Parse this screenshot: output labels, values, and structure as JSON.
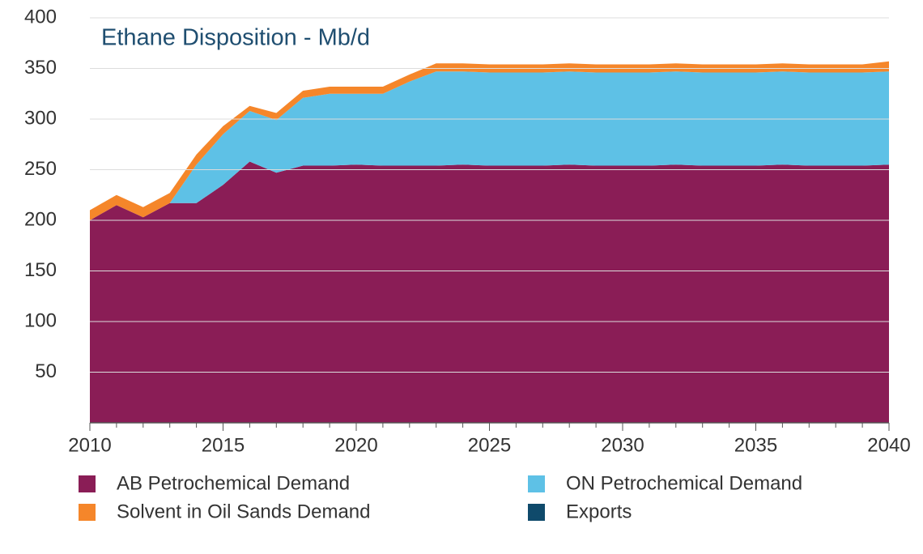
{
  "chart_data": {
    "type": "stacked_area",
    "title": "Ethane Disposition - Mb/d",
    "x": [
      2010,
      2011,
      2012,
      2013,
      2014,
      2015,
      2016,
      2017,
      2018,
      2019,
      2020,
      2021,
      2022,
      2023,
      2024,
      2025,
      2026,
      2027,
      2028,
      2029,
      2030,
      2031,
      2032,
      2033,
      2034,
      2035,
      2036,
      2037,
      2038,
      2039,
      2040
    ],
    "series": [
      {
        "name": "AB Petrochemical Demand",
        "color": "#8a1d56",
        "values": [
          200,
          215,
          203,
          217,
          217,
          235,
          258,
          247,
          254,
          254,
          255,
          254,
          254,
          254,
          255,
          254,
          254,
          254,
          255,
          254,
          254,
          254,
          255,
          254,
          254,
          254,
          255,
          254,
          254,
          254,
          255
        ]
      },
      {
        "name": "ON Petrochemical Demand",
        "color": "#5ec1e6",
        "values": [
          0,
          0,
          0,
          0,
          38,
          50,
          50,
          52,
          67,
          71,
          70,
          71,
          83,
          93,
          92,
          92,
          92,
          92,
          92,
          92,
          92,
          92,
          92,
          92,
          92,
          92,
          92,
          92,
          92,
          92,
          92
        ]
      },
      {
        "name": "Solvent in Oil Sands Demand",
        "color": "#f5862a",
        "values": [
          10,
          10,
          10,
          10,
          10,
          8,
          5,
          7,
          7,
          7,
          7,
          7,
          7,
          8,
          8,
          8,
          8,
          8,
          8,
          8,
          8,
          8,
          8,
          8,
          8,
          8,
          8,
          8,
          8,
          8,
          10
        ]
      },
      {
        "name": "Exports",
        "color": "#0f4a6b",
        "values": [
          0,
          0,
          0,
          0,
          0,
          0,
          0,
          0,
          0,
          0,
          0,
          0,
          0,
          0,
          0,
          0,
          0,
          0,
          0,
          0,
          0,
          0,
          0,
          0,
          0,
          0,
          0,
          0,
          0,
          0,
          0
        ]
      }
    ],
    "xlim": [
      2010,
      2040
    ],
    "xticks": [
      2010,
      2015,
      2020,
      2025,
      2030,
      2035,
      2040
    ],
    "ylim": [
      0,
      400
    ],
    "yticks": [
      50,
      100,
      150,
      200,
      250,
      300,
      350,
      400
    ],
    "grid": true
  }
}
